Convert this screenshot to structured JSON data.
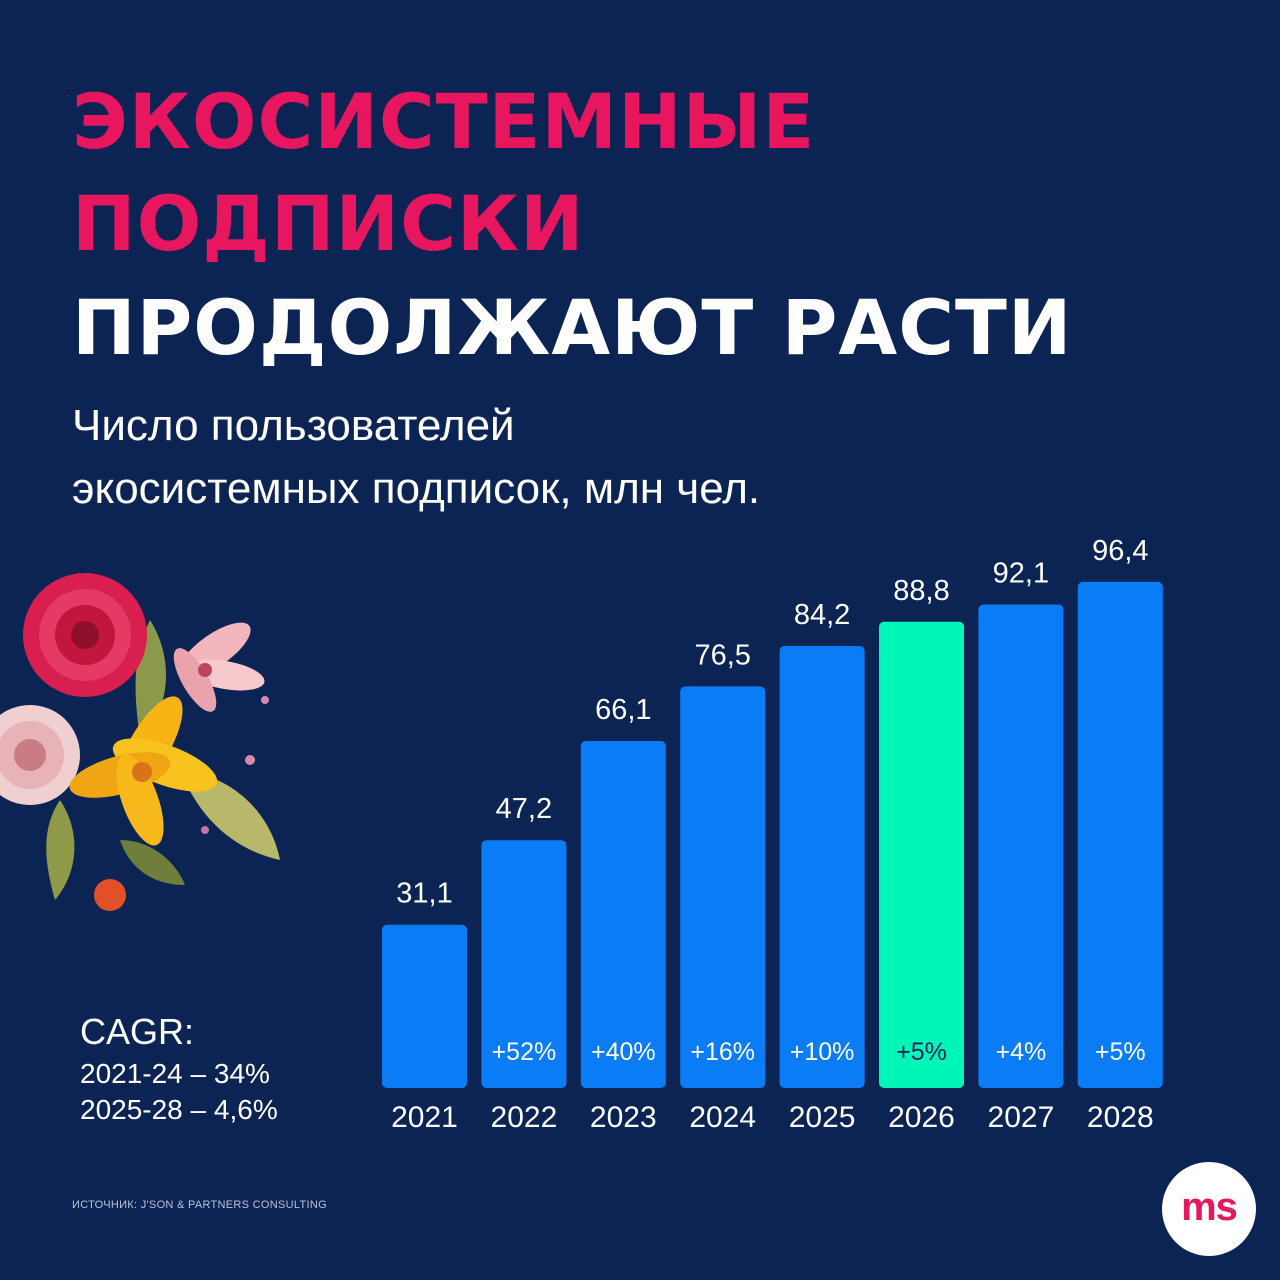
{
  "header": {
    "title_line1": "ЭКОСИСТЕМНЫЕ",
    "title_line2": "ПОДПИСКИ",
    "title_line3": "ПРОДОЛЖАЮТ РАСТИ",
    "subtitle_line1": "Число пользователей",
    "subtitle_line2": "экосистемных подписок, млн чел."
  },
  "colors": {
    "background": "#0c2454",
    "accent": "#e8155f",
    "bar": "#0a7cf5",
    "bar_highlight": "#00f5b8"
  },
  "chart_data": {
    "type": "bar",
    "categories": [
      "2021",
      "2022",
      "2023",
      "2024",
      "2025",
      "2026",
      "2027",
      "2028"
    ],
    "values": [
      31.1,
      47.2,
      66.1,
      76.5,
      84.2,
      88.8,
      92.1,
      96.4
    ],
    "value_labels": [
      "31,1",
      "47,2",
      "66,1",
      "76,5",
      "84,2",
      "88,8",
      "92,1",
      "96,4"
    ],
    "growth_labels": [
      "",
      "+52%",
      "+40%",
      "+16%",
      "+10%",
      "+5%",
      "+4%",
      "+5%"
    ],
    "highlight_category": "2026",
    "ylim": [
      0,
      100
    ],
    "grid": false,
    "legend": "none"
  },
  "cagr": {
    "title": "CAGR:",
    "line1": "2021-24 – 34%",
    "line2": "2025-28 – 4,6%"
  },
  "footer": {
    "source": "ИСТОЧНИК: J'SON & PARTNERS CONSULTING",
    "logo_text": "ms"
  },
  "decor": {
    "flowers": "flower-bouquet-illustration"
  }
}
